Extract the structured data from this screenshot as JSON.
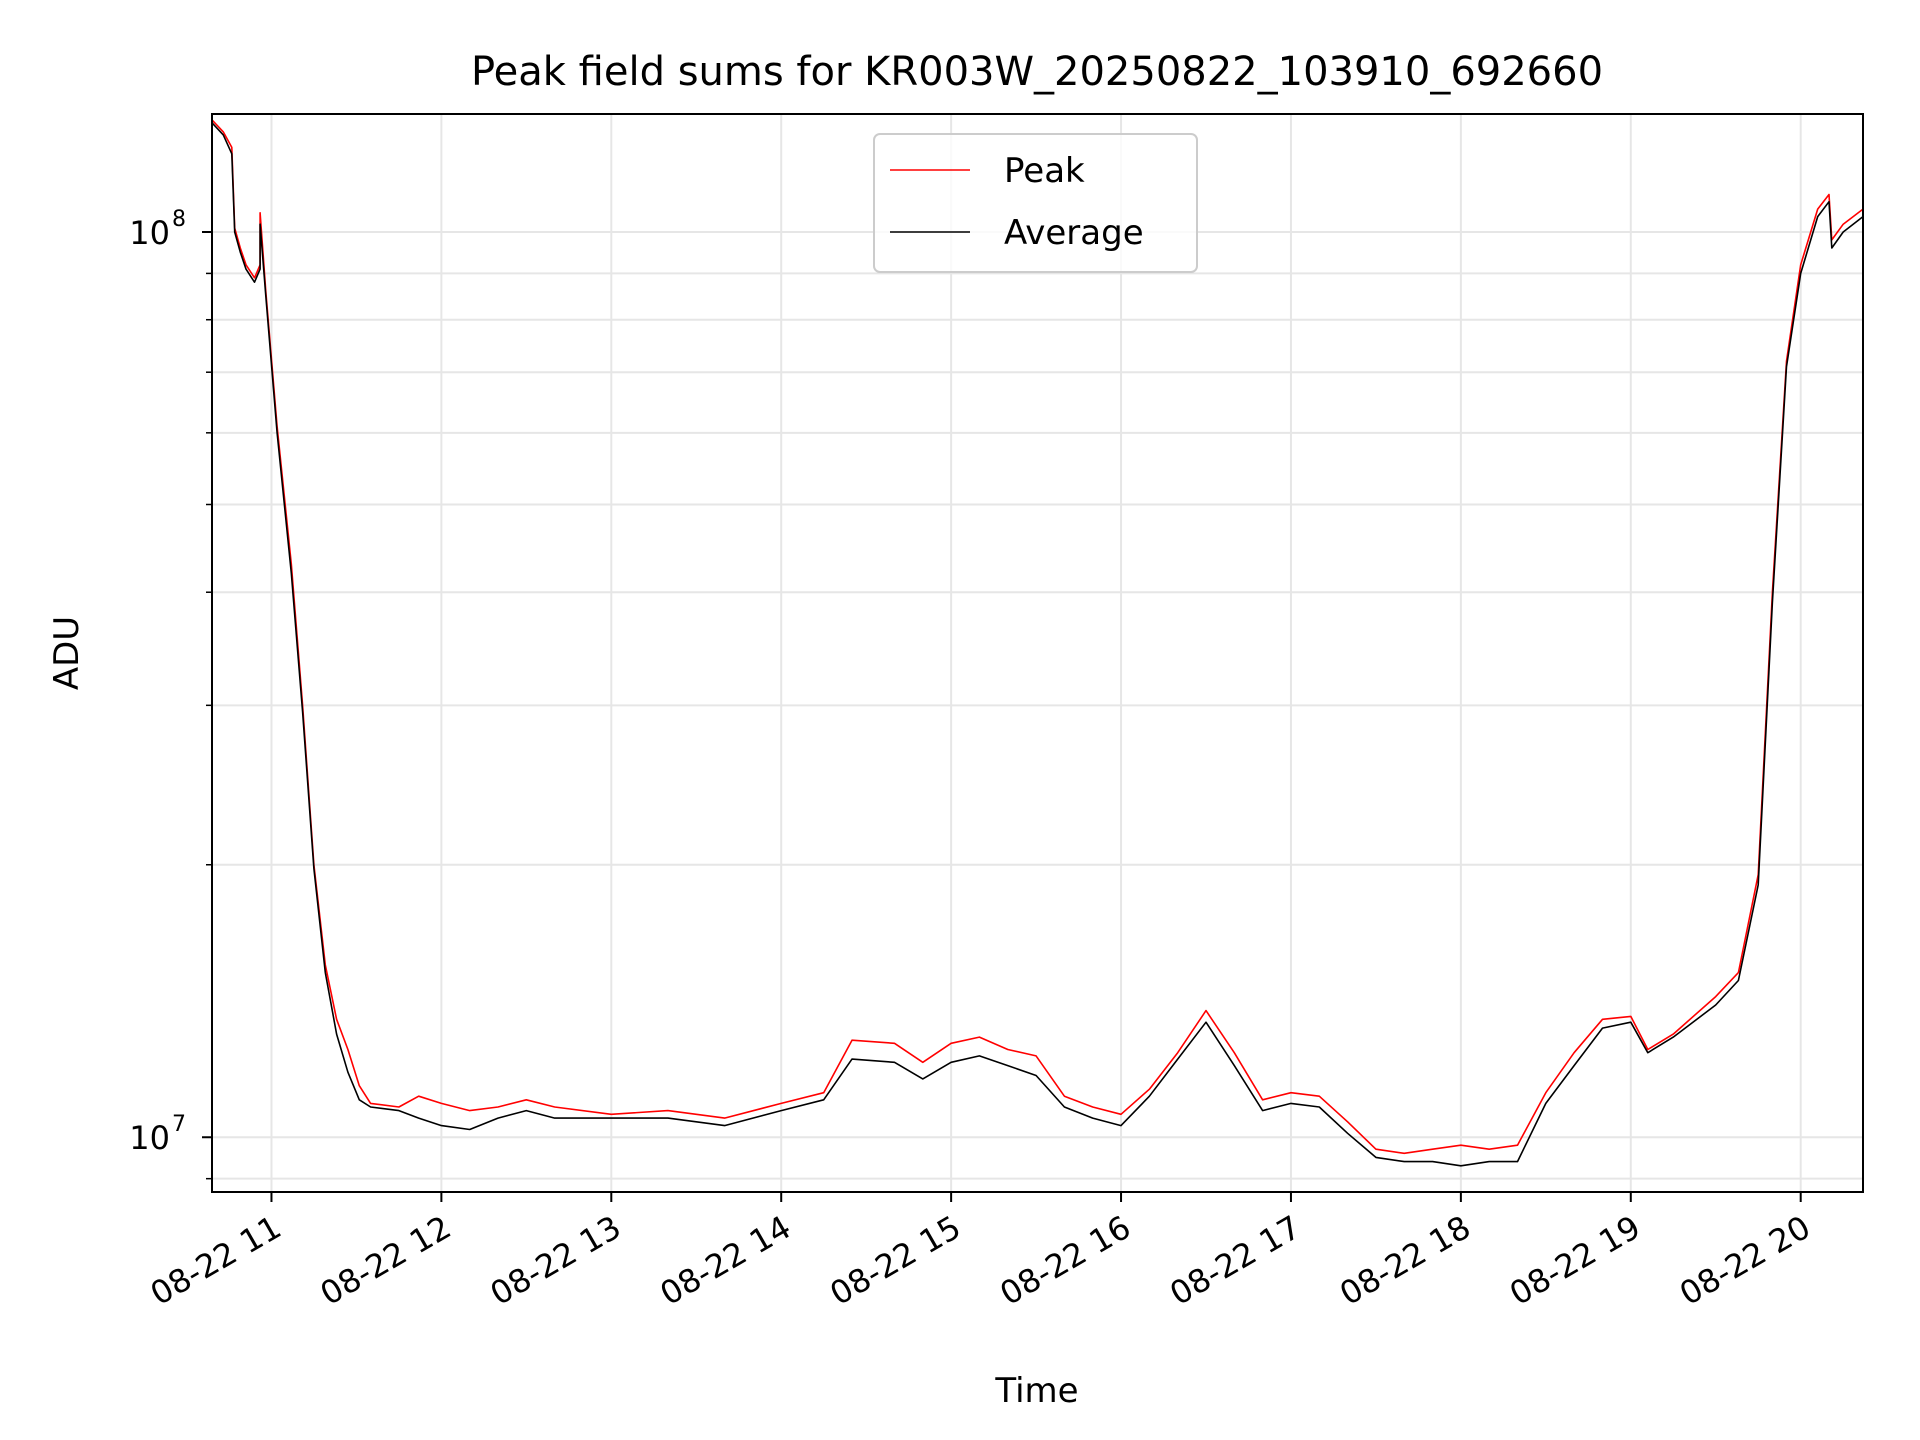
{
  "chart_data": {
    "type": "line",
    "title": "Peak field sums for KR003W_20250822_103910_692660",
    "xlabel": "Time",
    "ylabel": "ADU",
    "yscale": "log",
    "grid": true,
    "legend_placement": "top-center",
    "xlim": [
      "2025-08-22 10:39",
      "2025-08-22 20:22"
    ],
    "ylim": [
      8700000,
      135000000
    ],
    "x_ticks": [
      {
        "value": "2025-08-22 11:00",
        "label": "08-22 11"
      },
      {
        "value": "2025-08-22 12:00",
        "label": "08-22 12"
      },
      {
        "value": "2025-08-22 13:00",
        "label": "08-22 13"
      },
      {
        "value": "2025-08-22 14:00",
        "label": "08-22 14"
      },
      {
        "value": "2025-08-22 15:00",
        "label": "08-22 15"
      },
      {
        "value": "2025-08-22 16:00",
        "label": "08-22 16"
      },
      {
        "value": "2025-08-22 17:00",
        "label": "08-22 17"
      },
      {
        "value": "2025-08-22 18:00",
        "label": "08-22 18"
      },
      {
        "value": "2025-08-22 19:00",
        "label": "08-22 19"
      },
      {
        "value": "2025-08-22 20:00",
        "label": "08-22 20"
      }
    ],
    "y_ticks": [
      {
        "value": 10000000,
        "base": "10",
        "exp": "7"
      },
      {
        "value": 100000000,
        "base": "10",
        "exp": "8"
      }
    ],
    "series": [
      {
        "name": "Peak",
        "color": "#ff0000",
        "points": [
          [
            "2025-08-22 10:39",
            133000000
          ],
          [
            "2025-08-22 10:43",
            129000000
          ],
          [
            "2025-08-22 10:46",
            124000000
          ],
          [
            "2025-08-22 10:47",
            101000000
          ],
          [
            "2025-08-22 10:49",
            96000000
          ],
          [
            "2025-08-22 10:51",
            92000000
          ],
          [
            "2025-08-22 10:54",
            89000000
          ],
          [
            "2025-08-22 10:56",
            92000000
          ],
          [
            "2025-08-22 10:56",
            105000000
          ],
          [
            "2025-08-22 10:58",
            86000000
          ],
          [
            "2025-08-22 11:02",
            61000000
          ],
          [
            "2025-08-22 11:07",
            43000000
          ],
          [
            "2025-08-22 11:11",
            30000000
          ],
          [
            "2025-08-22 11:15",
            20000000
          ],
          [
            "2025-08-22 11:19",
            15500000
          ],
          [
            "2025-08-22 11:23",
            13500000
          ],
          [
            "2025-08-22 11:27",
            12500000
          ],
          [
            "2025-08-22 11:31",
            11400000
          ],
          [
            "2025-08-22 11:35",
            10900000
          ],
          [
            "2025-08-22 11:45",
            10800000
          ],
          [
            "2025-08-22 11:52",
            11100000
          ],
          [
            "2025-08-22 12:00",
            10900000
          ],
          [
            "2025-08-22 12:10",
            10700000
          ],
          [
            "2025-08-22 12:20",
            10800000
          ],
          [
            "2025-08-22 12:30",
            11000000
          ],
          [
            "2025-08-22 12:40",
            10800000
          ],
          [
            "2025-08-22 13:00",
            10600000
          ],
          [
            "2025-08-22 13:20",
            10700000
          ],
          [
            "2025-08-22 13:40",
            10500000
          ],
          [
            "2025-08-22 14:00",
            10900000
          ],
          [
            "2025-08-22 14:15",
            11200000
          ],
          [
            "2025-08-22 14:25",
            12800000
          ],
          [
            "2025-08-22 14:40",
            12700000
          ],
          [
            "2025-08-22 14:50",
            12100000
          ],
          [
            "2025-08-22 15:00",
            12700000
          ],
          [
            "2025-08-22 15:10",
            12900000
          ],
          [
            "2025-08-22 15:20",
            12500000
          ],
          [
            "2025-08-22 15:30",
            12300000
          ],
          [
            "2025-08-22 15:40",
            11100000
          ],
          [
            "2025-08-22 15:50",
            10800000
          ],
          [
            "2025-08-22 16:00",
            10600000
          ],
          [
            "2025-08-22 16:10",
            11300000
          ],
          [
            "2025-08-22 16:20",
            12400000
          ],
          [
            "2025-08-22 16:30",
            13800000
          ],
          [
            "2025-08-22 16:40",
            12400000
          ],
          [
            "2025-08-22 16:50",
            11000000
          ],
          [
            "2025-08-22 17:00",
            11200000
          ],
          [
            "2025-08-22 17:10",
            11100000
          ],
          [
            "2025-08-22 17:20",
            10400000
          ],
          [
            "2025-08-22 17:30",
            9700000
          ],
          [
            "2025-08-22 17:40",
            9600000
          ],
          [
            "2025-08-22 17:50",
            9700000
          ],
          [
            "2025-08-22 18:00",
            9800000
          ],
          [
            "2025-08-22 18:10",
            9700000
          ],
          [
            "2025-08-22 18:20",
            9800000
          ],
          [
            "2025-08-22 18:30",
            11200000
          ],
          [
            "2025-08-22 18:40",
            12400000
          ],
          [
            "2025-08-22 18:50",
            13500000
          ],
          [
            "2025-08-22 19:00",
            13600000
          ],
          [
            "2025-08-22 19:06",
            12500000
          ],
          [
            "2025-08-22 19:15",
            13000000
          ],
          [
            "2025-08-22 19:30",
            14300000
          ],
          [
            "2025-08-22 19:38",
            15200000
          ],
          [
            "2025-08-22 19:45",
            19500000
          ],
          [
            "2025-08-22 19:50",
            40000000
          ],
          [
            "2025-08-22 19:55",
            72000000
          ],
          [
            "2025-08-22 20:00",
            92000000
          ],
          [
            "2025-08-22 20:06",
            106000000
          ],
          [
            "2025-08-22 20:10",
            110000000
          ],
          [
            "2025-08-22 20:11",
            98000000
          ],
          [
            "2025-08-22 20:15",
            102000000
          ],
          [
            "2025-08-22 20:22",
            106000000
          ]
        ]
      },
      {
        "name": "Average",
        "color": "#000000",
        "points": [
          [
            "2025-08-22 10:39",
            132000000
          ],
          [
            "2025-08-22 10:43",
            128000000
          ],
          [
            "2025-08-22 10:46",
            122000000
          ],
          [
            "2025-08-22 10:47",
            100000000
          ],
          [
            "2025-08-22 10:49",
            95000000
          ],
          [
            "2025-08-22 10:51",
            91000000
          ],
          [
            "2025-08-22 10:54",
            88000000
          ],
          [
            "2025-08-22 10:56",
            91000000
          ],
          [
            "2025-08-22 10:56",
            102000000
          ],
          [
            "2025-08-22 10:58",
            85000000
          ],
          [
            "2025-08-22 11:02",
            60000000
          ],
          [
            "2025-08-22 11:07",
            42000000
          ],
          [
            "2025-08-22 11:11",
            29500000
          ],
          [
            "2025-08-22 11:15",
            19800000
          ],
          [
            "2025-08-22 11:19",
            15200000
          ],
          [
            "2025-08-22 11:23",
            13000000
          ],
          [
            "2025-08-22 11:27",
            11800000
          ],
          [
            "2025-08-22 11:31",
            11000000
          ],
          [
            "2025-08-22 11:35",
            10800000
          ],
          [
            "2025-08-22 11:45",
            10700000
          ],
          [
            "2025-08-22 11:52",
            10500000
          ],
          [
            "2025-08-22 12:00",
            10300000
          ],
          [
            "2025-08-22 12:10",
            10200000
          ],
          [
            "2025-08-22 12:20",
            10500000
          ],
          [
            "2025-08-22 12:30",
            10700000
          ],
          [
            "2025-08-22 12:40",
            10500000
          ],
          [
            "2025-08-22 13:00",
            10500000
          ],
          [
            "2025-08-22 13:20",
            10500000
          ],
          [
            "2025-08-22 13:40",
            10300000
          ],
          [
            "2025-08-22 14:00",
            10700000
          ],
          [
            "2025-08-22 14:15",
            11000000
          ],
          [
            "2025-08-22 14:25",
            12200000
          ],
          [
            "2025-08-22 14:40",
            12100000
          ],
          [
            "2025-08-22 14:50",
            11600000
          ],
          [
            "2025-08-22 15:00",
            12100000
          ],
          [
            "2025-08-22 15:10",
            12300000
          ],
          [
            "2025-08-22 15:20",
            12000000
          ],
          [
            "2025-08-22 15:30",
            11700000
          ],
          [
            "2025-08-22 15:40",
            10800000
          ],
          [
            "2025-08-22 15:50",
            10500000
          ],
          [
            "2025-08-22 16:00",
            10300000
          ],
          [
            "2025-08-22 16:10",
            11100000
          ],
          [
            "2025-08-22 16:20",
            12200000
          ],
          [
            "2025-08-22 16:30",
            13400000
          ],
          [
            "2025-08-22 16:40",
            12000000
          ],
          [
            "2025-08-22 16:50",
            10700000
          ],
          [
            "2025-08-22 17:00",
            10900000
          ],
          [
            "2025-08-22 17:10",
            10800000
          ],
          [
            "2025-08-22 17:20",
            10100000
          ],
          [
            "2025-08-22 17:30",
            9500000
          ],
          [
            "2025-08-22 17:40",
            9400000
          ],
          [
            "2025-08-22 17:50",
            9400000
          ],
          [
            "2025-08-22 18:00",
            9300000
          ],
          [
            "2025-08-22 18:10",
            9400000
          ],
          [
            "2025-08-22 18:20",
            9400000
          ],
          [
            "2025-08-22 18:30",
            10900000
          ],
          [
            "2025-08-22 18:40",
            12000000
          ],
          [
            "2025-08-22 18:50",
            13200000
          ],
          [
            "2025-08-22 19:00",
            13400000
          ],
          [
            "2025-08-22 19:06",
            12400000
          ],
          [
            "2025-08-22 19:15",
            12900000
          ],
          [
            "2025-08-22 19:30",
            14000000
          ],
          [
            "2025-08-22 19:38",
            14900000
          ],
          [
            "2025-08-22 19:45",
            19000000
          ],
          [
            "2025-08-22 19:50",
            39000000
          ],
          [
            "2025-08-22 19:55",
            71000000
          ],
          [
            "2025-08-22 20:00",
            90000000
          ],
          [
            "2025-08-22 20:06",
            104000000
          ],
          [
            "2025-08-22 20:10",
            108000000
          ],
          [
            "2025-08-22 20:11",
            96000000
          ],
          [
            "2025-08-22 20:15",
            100000000
          ],
          [
            "2025-08-22 20:22",
            104000000
          ]
        ]
      }
    ]
  }
}
